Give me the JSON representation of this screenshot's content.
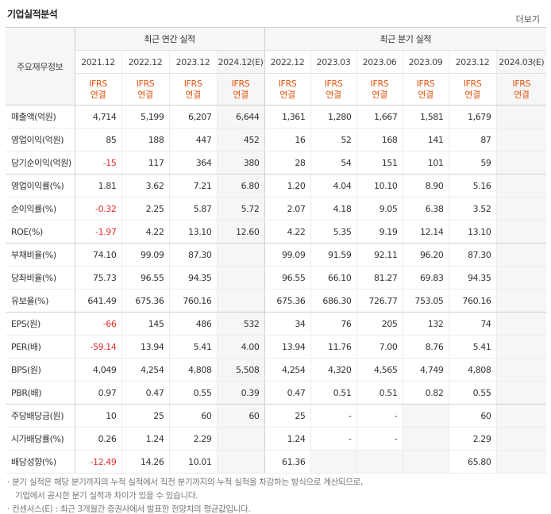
{
  "title": "기업실적분석",
  "more_label": "더보기",
  "header": {
    "corner": "주요재무정보",
    "annual_group": "최근 연간 실적",
    "quarter_group": "최근 분기 실적",
    "periods": [
      "2021.12",
      "2022.12",
      "2023.12",
      "2024.12(E)",
      "2022.12",
      "2023.03",
      "2023.06",
      "2023.09",
      "2023.12",
      "2024.03(E)"
    ],
    "ifrs_top": "IFRS",
    "ifrs_bottom": "연결"
  },
  "rows": [
    {
      "label": "매출액(억원)",
      "values": [
        "4,714",
        "5,199",
        "6,207",
        "6,644",
        "1,361",
        "1,280",
        "1,667",
        "1,581",
        "1,679",
        ""
      ]
    },
    {
      "label": "영업이익(억원)",
      "values": [
        "85",
        "188",
        "447",
        "452",
        "16",
        "52",
        "168",
        "141",
        "87",
        ""
      ]
    },
    {
      "label": "당기순이익(억원)",
      "values": [
        "-15",
        "117",
        "364",
        "380",
        "28",
        "54",
        "151",
        "101",
        "59",
        ""
      ]
    },
    {
      "label": "영업이익률(%)",
      "values": [
        "1.81",
        "3.62",
        "7.21",
        "6.80",
        "1.20",
        "4.04",
        "10.10",
        "8.90",
        "5.16",
        ""
      ]
    },
    {
      "label": "순이익률(%)",
      "values": [
        "-0.32",
        "2.25",
        "5.87",
        "5.72",
        "2.07",
        "4.18",
        "9.05",
        "6.38",
        "3.52",
        ""
      ]
    },
    {
      "label": "ROE(%)",
      "values": [
        "-1.97",
        "4.22",
        "13.10",
        "12.60",
        "4.22",
        "5.35",
        "9.19",
        "12.14",
        "13.10",
        ""
      ]
    },
    {
      "label": "부채비율(%)",
      "values": [
        "74.10",
        "99.09",
        "87.30",
        "",
        "99.09",
        "91.59",
        "92.11",
        "96.20",
        "87.30",
        ""
      ]
    },
    {
      "label": "당좌비율(%)",
      "values": [
        "75.73",
        "96.55",
        "94.35",
        "",
        "96.55",
        "66.10",
        "81.27",
        "69.83",
        "94.35",
        ""
      ]
    },
    {
      "label": "유보율(%)",
      "values": [
        "641.49",
        "675.36",
        "760.16",
        "",
        "675.36",
        "686.30",
        "726.77",
        "753.05",
        "760.16",
        ""
      ]
    },
    {
      "label": "EPS(원)",
      "values": [
        "-66",
        "145",
        "486",
        "532",
        "34",
        "76",
        "205",
        "132",
        "74",
        ""
      ]
    },
    {
      "label": "PER(배)",
      "values": [
        "-59.14",
        "13.94",
        "5.41",
        "4.00",
        "13.94",
        "11.76",
        "7.00",
        "8.76",
        "5.41",
        ""
      ]
    },
    {
      "label": "BPS(원)",
      "values": [
        "4,049",
        "4,254",
        "4,808",
        "5,508",
        "4,254",
        "4,320",
        "4,565",
        "4,749",
        "4,808",
        ""
      ]
    },
    {
      "label": "PBR(배)",
      "values": [
        "0.97",
        "0.47",
        "0.55",
        "0.39",
        "0.47",
        "0.51",
        "0.51",
        "0.82",
        "0.55",
        ""
      ]
    },
    {
      "label": "주당배당금(원)",
      "values": [
        "10",
        "25",
        "60",
        "60",
        "25",
        "-",
        "-",
        "",
        "60",
        ""
      ]
    },
    {
      "label": "시가배당률(%)",
      "values": [
        "0.26",
        "1.24",
        "2.29",
        "",
        "1.24",
        "-",
        "-",
        "",
        "2.29",
        ""
      ]
    },
    {
      "label": "배당성향(%)",
      "values": [
        "-12.49",
        "14.26",
        "10.01",
        "",
        "61.36",
        "",
        "",
        "",
        "65.80",
        ""
      ]
    }
  ],
  "notes": [
    "· 분기 실적은 해당 분기까지의 누적 실적에서 직전 분기까지의 누적 실적을 차감하는 방식으로 계산되므로,",
    "기업에서 공시한 분기 실적과 차이가 있을 수 있습니다.",
    "· 컨센서스(E) : 최근 3개월간 증권사에서 발표한 전망치의 평균값입니다."
  ]
}
